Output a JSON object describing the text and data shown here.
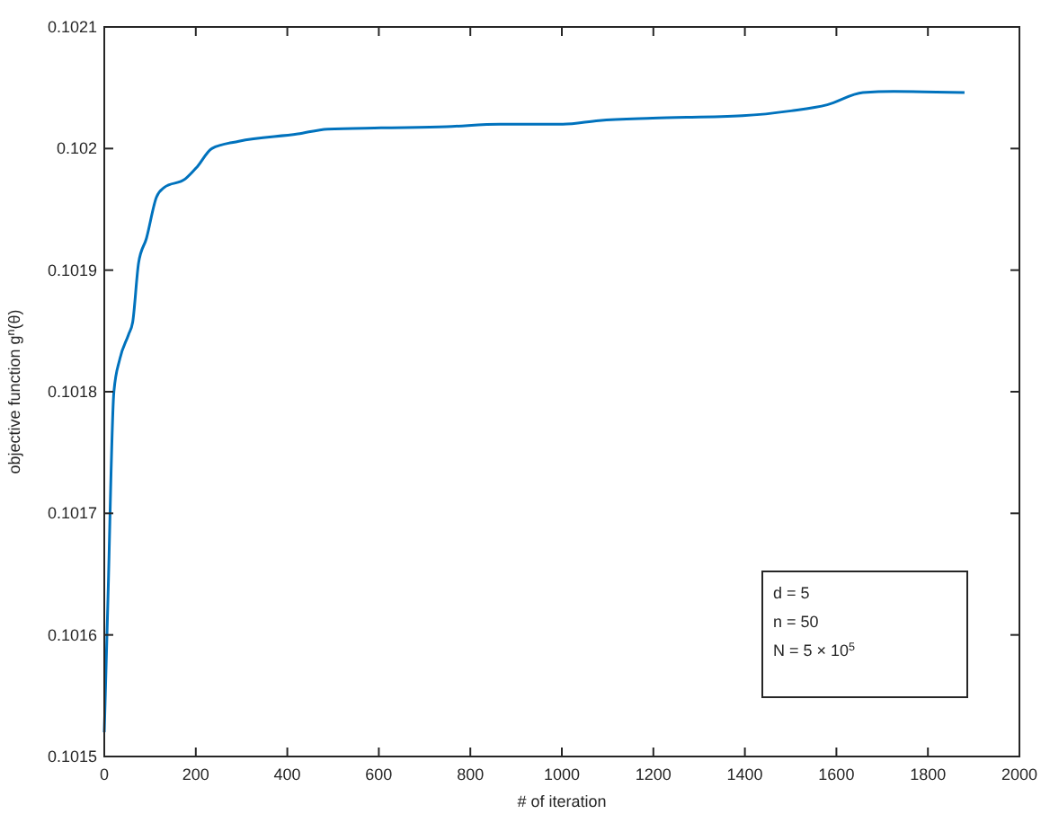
{
  "chart_data": {
    "type": "line",
    "xlabel": "# of iteration",
    "ylabel": "objective function g$^{n}$(θ)",
    "xlim": [
      0,
      2000
    ],
    "ylim": [
      0.1015,
      0.1021
    ],
    "xticks": [
      0,
      200,
      400,
      600,
      800,
      1000,
      1200,
      1400,
      1600,
      1800,
      2000
    ],
    "yticks": [
      0.1015,
      0.1016,
      0.1017,
      0.1018,
      0.1019,
      0.102,
      0.1021
    ],
    "annotations": [
      "d = 5",
      "n = 50",
      "N = 5 × 10$^{5}$"
    ],
    "series": [
      {
        "color": "#0072bd",
        "x": [
          0,
          8,
          21,
          34,
          53,
          62,
          75,
          92,
          114,
          131,
          177,
          203,
          235,
          294,
          423,
          488,
          605,
          748,
          865,
          1002,
          1081,
          1198,
          1395,
          1501,
          1580,
          1658,
          1725,
          1880
        ],
        "values": [
          0.10152,
          0.101629,
          0.1018,
          0.101827,
          0.101847,
          0.101857,
          0.101906,
          0.101926,
          0.10196,
          0.101968,
          0.101975,
          0.101985,
          0.102,
          0.102006,
          0.102012,
          0.102016,
          0.102017,
          0.102018,
          0.10202,
          0.10202,
          0.102023,
          0.102025,
          0.102027,
          0.102031,
          0.102036,
          0.102046,
          0.102047,
          0.102046
        ]
      }
    ]
  }
}
